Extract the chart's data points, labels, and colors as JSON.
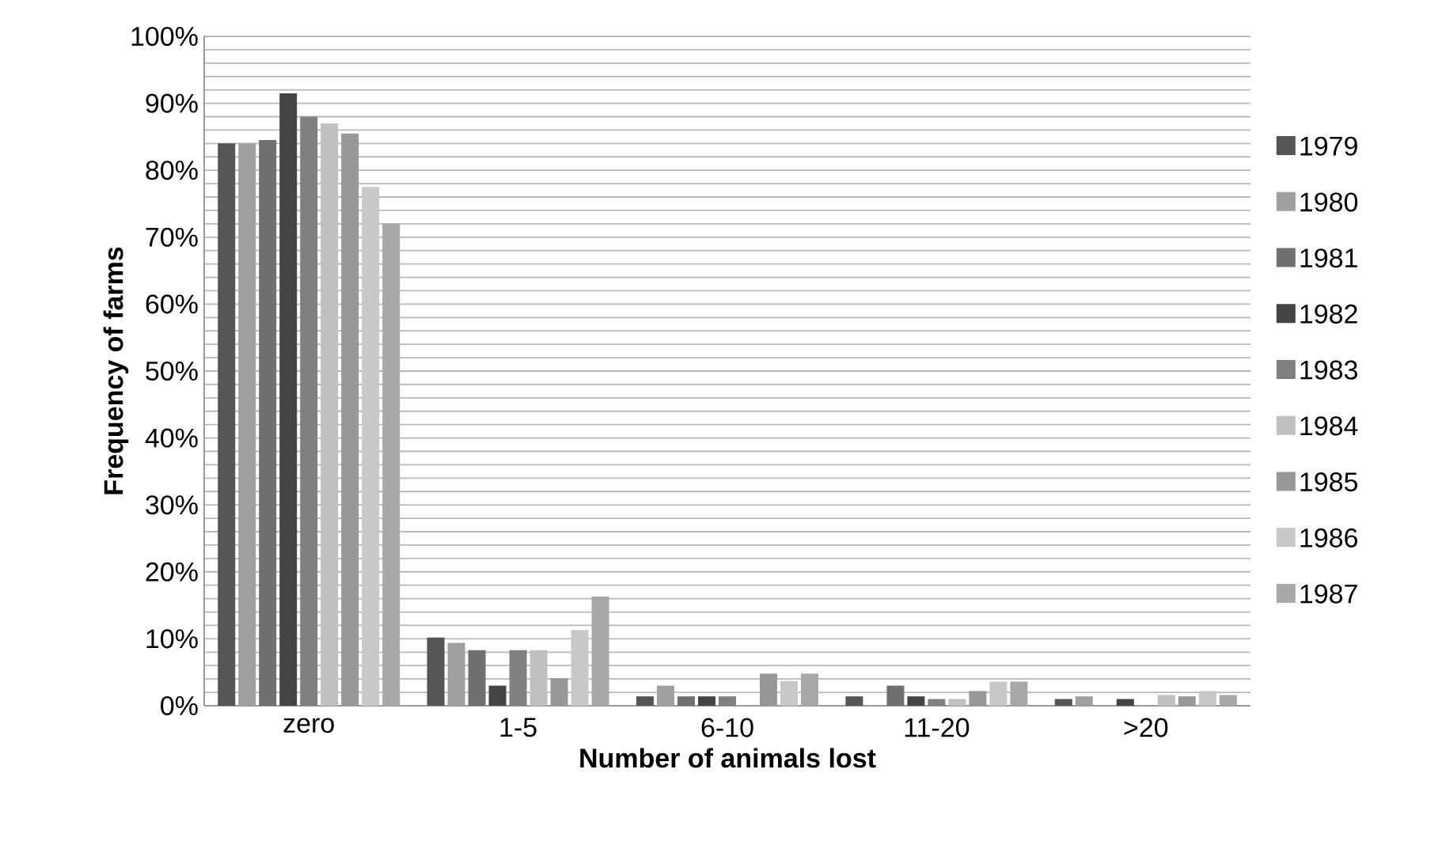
{
  "chart_data": {
    "type": "bar",
    "xlabel": "Number of animals lost",
    "ylabel": "Frequency of farms",
    "categories": [
      "zero",
      "1-5",
      "6-10",
      "11-20",
      ">20"
    ],
    "series": [
      {
        "name": "1979",
        "color": "#555555",
        "values": [
          84,
          10.2,
          1.4,
          1.4,
          1.0
        ]
      },
      {
        "name": "1980",
        "color": "#a0a0a0",
        "values": [
          84,
          9.4,
          3.0,
          null,
          1.4
        ]
      },
      {
        "name": "1981",
        "color": "#707070",
        "values": [
          84.5,
          8.3,
          1.4,
          3.0,
          null
        ]
      },
      {
        "name": "1982",
        "color": "#444444",
        "values": [
          91.5,
          3.0,
          1.4,
          1.4,
          1.0
        ]
      },
      {
        "name": "1983",
        "color": "#808080",
        "values": [
          88,
          8.3,
          1.4,
          1.0,
          0
        ]
      },
      {
        "name": "1984",
        "color": "#c0c0c0",
        "values": [
          87,
          8.3,
          null,
          1.0,
          1.6
        ]
      },
      {
        "name": "1985",
        "color": "#989898",
        "values": [
          85.5,
          4.1,
          4.8,
          2.2,
          1.4
        ]
      },
      {
        "name": "1986",
        "color": "#c8c8c8",
        "values": [
          77.5,
          11.3,
          3.7,
          3.6,
          2.2
        ]
      },
      {
        "name": "1987",
        "color": "#a8a8a8",
        "values": [
          72,
          16.3,
          4.8,
          3.6,
          1.6
        ]
      }
    ],
    "ylim": [
      0,
      100
    ],
    "yticks": [
      {
        "value": 0,
        "label": "0%"
      },
      {
        "value": 2,
        "label": null
      },
      {
        "value": 4,
        "label": null
      },
      {
        "value": 6,
        "label": null
      },
      {
        "value": 8,
        "label": null
      },
      {
        "value": 10,
        "label": "10%"
      },
      {
        "value": 12,
        "label": null
      },
      {
        "value": 14,
        "label": null
      },
      {
        "value": 16,
        "label": null
      },
      {
        "value": 18,
        "label": null
      },
      {
        "value": 20,
        "label": "20%"
      },
      {
        "value": 22,
        "label": null
      },
      {
        "value": 24,
        "label": null
      },
      {
        "value": 26,
        "label": null
      },
      {
        "value": 28,
        "label": null
      },
      {
        "value": 30,
        "label": "30%"
      },
      {
        "value": 32,
        "label": null
      },
      {
        "value": 34,
        "label": null
      },
      {
        "value": 36,
        "label": null
      },
      {
        "value": 38,
        "label": null
      },
      {
        "value": 40,
        "label": "40%"
      },
      {
        "value": 42,
        "label": null
      },
      {
        "value": 44,
        "label": null
      },
      {
        "value": 46,
        "label": null
      },
      {
        "value": 48,
        "label": null
      },
      {
        "value": 50,
        "label": "50%"
      },
      {
        "value": 52,
        "label": null
      },
      {
        "value": 54,
        "label": null
      },
      {
        "value": 56,
        "label": null
      },
      {
        "value": 58,
        "label": null
      },
      {
        "value": 60,
        "label": "60%"
      },
      {
        "value": 62,
        "label": null
      },
      {
        "value": 64,
        "label": null
      },
      {
        "value": 66,
        "label": null
      },
      {
        "value": 68,
        "label": null
      },
      {
        "value": 70,
        "label": "70%"
      },
      {
        "value": 72,
        "label": null
      },
      {
        "value": 74,
        "label": null
      },
      {
        "value": 76,
        "label": null
      },
      {
        "value": 78,
        "label": null
      },
      {
        "value": 80,
        "label": "80%"
      },
      {
        "value": 82,
        "label": null
      },
      {
        "value": 84,
        "label": null
      },
      {
        "value": 86,
        "label": null
      },
      {
        "value": 88,
        "label": null
      },
      {
        "value": 90,
        "label": "90%"
      },
      {
        "value": 92,
        "label": null
      },
      {
        "value": 94,
        "label": null
      },
      {
        "value": 96,
        "label": null
      },
      {
        "value": 98,
        "label": null
      },
      {
        "value": 100,
        "label": "100%"
      }
    ],
    "grid": "y",
    "legend": "right"
  }
}
